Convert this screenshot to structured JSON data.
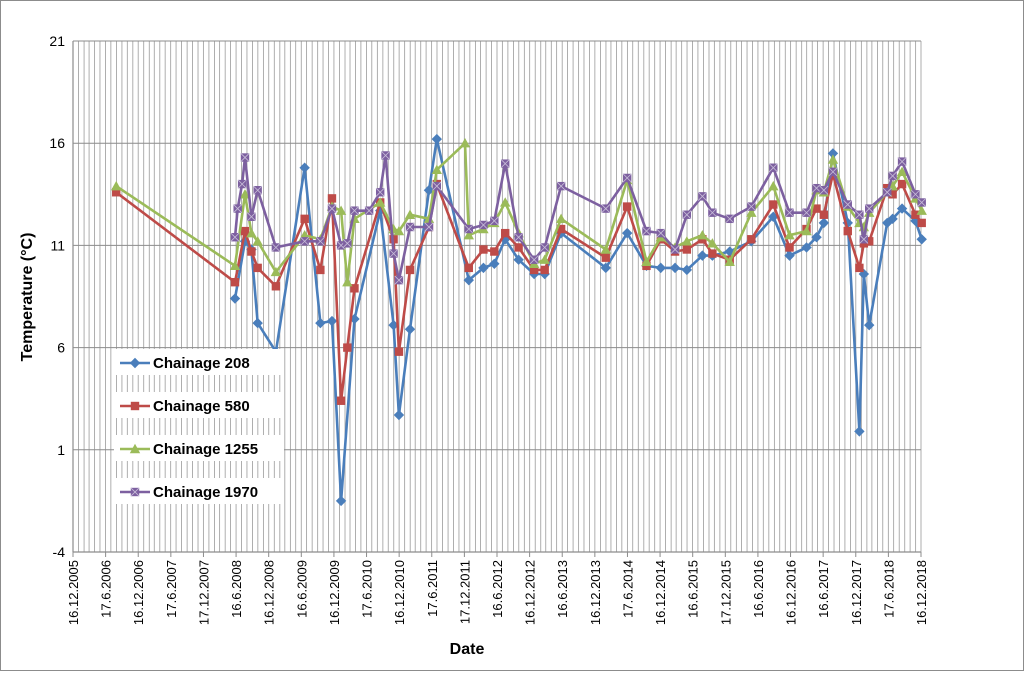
{
  "chart_data": {
    "type": "line",
    "title": "",
    "xlabel": "Date",
    "ylabel": "Temperature (°C)",
    "x_axis_kind": "date",
    "xlim": [
      "2005-12-16",
      "2018-12-16"
    ],
    "ylim": [
      -4,
      21
    ],
    "y_ticks": [
      "21",
      "16",
      "11",
      "6",
      "1",
      "-4"
    ],
    "x_ticks": [
      "16.12.2005",
      "17.6.2006",
      "16.12.2006",
      "17.6.2007",
      "17.12.2007",
      "16.6.2008",
      "16.12.2008",
      "16.6.2009",
      "16.12.2009",
      "17.6.2010",
      "16.12.2010",
      "17.6.2011",
      "17.12.2011",
      "16.6.2012",
      "16.12.2012",
      "16.6.2013",
      "16.12.2013",
      "17.6.2014",
      "16.12.2014",
      "16.6.2015",
      "17.12.2015",
      "16.6.2016",
      "16.12.2016",
      "16.6.2017",
      "16.12.2017",
      "17.6.2018",
      "16.12.2018"
    ],
    "grid": true,
    "legend_position": "left-bottom inside plot",
    "series": [
      {
        "name": "Chainage 208",
        "color": "#4a7ebb",
        "marker": "diamond",
        "points": [
          [
            "2008-06-10",
            8.4
          ],
          [
            "2008-08-05",
            11.2
          ],
          [
            "2008-09-10",
            10.8
          ],
          [
            "2008-10-15",
            7.2
          ],
          [
            "2009-01-25",
            5.8
          ],
          [
            "2009-07-05",
            14.8
          ],
          [
            "2009-10-01",
            7.2
          ],
          [
            "2009-12-05",
            7.3
          ],
          [
            "2010-01-25",
            -1.5
          ],
          [
            "2010-04-10",
            7.4
          ],
          [
            "2010-09-01",
            12.7
          ],
          [
            "2010-11-15",
            7.1
          ],
          [
            "2010-12-15",
            2.7
          ],
          [
            "2011-02-15",
            6.9
          ],
          [
            "2011-06-01",
            13.7
          ],
          [
            "2011-07-15",
            16.2
          ],
          [
            "2012-01-10",
            9.3
          ],
          [
            "2012-04-01",
            9.9
          ],
          [
            "2012-06-01",
            10.1
          ],
          [
            "2012-08-01",
            11.3
          ],
          [
            "2012-10-15",
            10.3
          ],
          [
            "2013-01-10",
            9.6
          ],
          [
            "2013-03-10",
            9.6
          ],
          [
            "2013-06-10",
            11.6
          ],
          [
            "2014-02-15",
            9.9
          ],
          [
            "2014-06-15",
            11.6
          ],
          [
            "2014-10-01",
            10.0
          ],
          [
            "2014-12-20",
            9.9
          ],
          [
            "2015-03-10",
            9.9
          ],
          [
            "2015-05-15",
            9.8
          ],
          [
            "2015-08-10",
            10.5
          ],
          [
            "2015-10-05",
            10.5
          ],
          [
            "2016-01-10",
            10.7
          ],
          [
            "2016-05-10",
            11.2
          ],
          [
            "2016-09-10",
            12.4
          ],
          [
            "2016-12-10",
            10.5
          ],
          [
            "2017-03-15",
            10.9
          ],
          [
            "2017-05-10",
            11.4
          ],
          [
            "2017-06-20",
            12.1
          ],
          [
            "2017-08-10",
            15.5
          ],
          [
            "2017-11-01",
            12.1
          ],
          [
            "2018-01-05",
            1.9
          ],
          [
            "2018-01-30",
            9.6
          ],
          [
            "2018-03-01",
            7.1
          ],
          [
            "2018-06-10",
            12.1
          ],
          [
            "2018-07-10",
            12.3
          ],
          [
            "2018-09-01",
            12.8
          ],
          [
            "2018-11-15",
            12.2
          ],
          [
            "2018-12-20",
            11.3
          ]
        ]
      },
      {
        "name": "Chainage 580",
        "color": "#be4b48",
        "marker": "square",
        "points": [
          [
            "2006-08-15",
            13.6
          ],
          [
            "2008-06-10",
            9.2
          ],
          [
            "2008-08-05",
            11.7
          ],
          [
            "2008-09-10",
            10.7
          ],
          [
            "2008-10-15",
            9.9
          ],
          [
            "2009-01-25",
            9.0
          ],
          [
            "2009-07-05",
            12.3
          ],
          [
            "2009-10-01",
            9.8
          ],
          [
            "2009-12-05",
            13.3
          ],
          [
            "2010-01-25",
            3.4
          ],
          [
            "2010-03-01",
            6.0
          ],
          [
            "2010-04-10",
            8.9
          ],
          [
            "2010-09-01",
            13.1
          ],
          [
            "2010-11-15",
            11.3
          ],
          [
            "2010-12-15",
            5.8
          ],
          [
            "2011-02-15",
            9.8
          ],
          [
            "2011-06-01",
            11.9
          ],
          [
            "2011-07-15",
            14.0
          ],
          [
            "2012-01-10",
            9.9
          ],
          [
            "2012-04-01",
            10.8
          ],
          [
            "2012-06-01",
            10.7
          ],
          [
            "2012-08-01",
            11.6
          ],
          [
            "2012-10-15",
            10.9
          ],
          [
            "2013-01-10",
            9.8
          ],
          [
            "2013-03-10",
            9.8
          ],
          [
            "2013-06-10",
            11.8
          ],
          [
            "2014-02-15",
            10.4
          ],
          [
            "2014-06-15",
            12.9
          ],
          [
            "2014-10-01",
            10.0
          ],
          [
            "2014-12-20",
            11.3
          ],
          [
            "2015-03-10",
            10.7
          ],
          [
            "2015-05-15",
            10.8
          ],
          [
            "2015-08-10",
            11.3
          ],
          [
            "2015-10-05",
            10.6
          ],
          [
            "2016-01-10",
            10.3
          ],
          [
            "2016-05-10",
            11.3
          ],
          [
            "2016-09-10",
            13.0
          ],
          [
            "2016-12-10",
            10.9
          ],
          [
            "2017-03-15",
            11.8
          ],
          [
            "2017-05-10",
            12.8
          ],
          [
            "2017-06-20",
            12.5
          ],
          [
            "2017-08-10",
            14.5
          ],
          [
            "2017-11-01",
            11.7
          ],
          [
            "2018-01-05",
            9.9
          ],
          [
            "2018-01-30",
            11.1
          ],
          [
            "2018-03-01",
            11.2
          ],
          [
            "2018-06-10",
            13.8
          ],
          [
            "2018-07-10",
            13.5
          ],
          [
            "2018-09-01",
            14.0
          ],
          [
            "2018-11-15",
            12.5
          ],
          [
            "2018-12-20",
            12.1
          ]
        ]
      },
      {
        "name": "Chainage 1255",
        "color": "#9bbb59",
        "marker": "triangle",
        "points": [
          [
            "2006-08-15",
            13.9
          ],
          [
            "2008-06-10",
            10.0
          ],
          [
            "2008-08-05",
            13.5
          ],
          [
            "2008-09-10",
            11.6
          ],
          [
            "2008-10-15",
            11.2
          ],
          [
            "2009-01-25",
            9.7
          ],
          [
            "2009-07-05",
            11.5
          ],
          [
            "2009-10-01",
            11.3
          ],
          [
            "2009-12-05",
            12.9
          ],
          [
            "2010-01-25",
            12.7
          ],
          [
            "2010-03-01",
            9.2
          ],
          [
            "2010-04-10",
            12.3
          ],
          [
            "2010-09-01",
            13.1
          ],
          [
            "2010-11-15",
            11.8
          ],
          [
            "2010-12-15",
            11.7
          ],
          [
            "2011-02-15",
            12.5
          ],
          [
            "2011-06-01",
            12.3
          ],
          [
            "2011-07-15",
            14.7
          ],
          [
            "2011-12-20",
            16.0
          ],
          [
            "2012-01-10",
            11.5
          ],
          [
            "2012-04-01",
            11.8
          ],
          [
            "2012-06-01",
            12.1
          ],
          [
            "2012-08-01",
            13.1
          ],
          [
            "2012-10-15",
            11.6
          ],
          [
            "2013-01-10",
            10.1
          ],
          [
            "2013-03-10",
            10.3
          ],
          [
            "2013-06-10",
            12.3
          ],
          [
            "2014-02-15",
            10.8
          ],
          [
            "2014-06-15",
            14.2
          ],
          [
            "2014-10-01",
            10.2
          ],
          [
            "2014-12-20",
            11.4
          ],
          [
            "2015-03-10",
            10.9
          ],
          [
            "2015-05-15",
            11.2
          ],
          [
            "2015-08-10",
            11.5
          ],
          [
            "2015-10-05",
            11.1
          ],
          [
            "2016-01-10",
            10.2
          ],
          [
            "2016-05-10",
            12.6
          ],
          [
            "2016-09-10",
            13.9
          ],
          [
            "2016-12-10",
            11.5
          ],
          [
            "2017-03-15",
            11.7
          ],
          [
            "2017-05-10",
            13.7
          ],
          [
            "2017-06-20",
            13.6
          ],
          [
            "2017-08-10",
            15.2
          ],
          [
            "2017-11-01",
            12.9
          ],
          [
            "2018-01-05",
            12.1
          ],
          [
            "2018-01-30",
            11.9
          ],
          [
            "2018-03-01",
            12.6
          ],
          [
            "2018-06-10",
            13.6
          ],
          [
            "2018-07-10",
            13.9
          ],
          [
            "2018-09-01",
            14.6
          ],
          [
            "2018-11-15",
            13.3
          ],
          [
            "2018-12-20",
            12.7
          ]
        ]
      },
      {
        "name": "Chainage 1970",
        "color": "#7d60a0",
        "marker": "square-x",
        "points": [
          [
            "2008-06-10",
            11.4
          ],
          [
            "2008-06-25",
            12.8
          ],
          [
            "2008-07-20",
            14.0
          ],
          [
            "2008-08-05",
            15.3
          ],
          [
            "2008-09-10",
            12.4
          ],
          [
            "2008-10-15",
            13.7
          ],
          [
            "2009-01-25",
            10.9
          ],
          [
            "2009-07-05",
            11.2
          ],
          [
            "2009-10-01",
            11.2
          ],
          [
            "2009-12-05",
            12.8
          ],
          [
            "2010-01-25",
            11.0
          ],
          [
            "2010-03-01",
            11.1
          ],
          [
            "2010-04-10",
            12.7
          ],
          [
            "2010-07-01",
            12.7
          ],
          [
            "2010-09-01",
            13.6
          ],
          [
            "2010-10-01",
            15.4
          ],
          [
            "2010-11-15",
            10.6
          ],
          [
            "2010-12-15",
            9.3
          ],
          [
            "2011-02-15",
            11.9
          ],
          [
            "2011-06-01",
            11.9
          ],
          [
            "2011-07-15",
            13.9
          ],
          [
            "2012-01-10",
            11.8
          ],
          [
            "2012-04-01",
            12.0
          ],
          [
            "2012-06-01",
            12.2
          ],
          [
            "2012-08-01",
            15.0
          ],
          [
            "2012-10-15",
            11.4
          ],
          [
            "2013-01-10",
            10.3
          ],
          [
            "2013-03-10",
            10.9
          ],
          [
            "2013-06-10",
            13.9
          ],
          [
            "2014-02-15",
            12.8
          ],
          [
            "2014-06-15",
            14.3
          ],
          [
            "2014-10-01",
            11.7
          ],
          [
            "2014-12-20",
            11.6
          ],
          [
            "2015-03-10",
            10.8
          ],
          [
            "2015-05-15",
            12.5
          ],
          [
            "2015-08-10",
            13.4
          ],
          [
            "2015-10-05",
            12.6
          ],
          [
            "2016-01-10",
            12.3
          ],
          [
            "2016-05-10",
            12.9
          ],
          [
            "2016-09-10",
            14.8
          ],
          [
            "2016-12-10",
            12.6
          ],
          [
            "2017-03-15",
            12.6
          ],
          [
            "2017-05-10",
            13.8
          ],
          [
            "2017-06-20",
            13.7
          ],
          [
            "2017-08-10",
            14.6
          ],
          [
            "2017-11-01",
            13.0
          ],
          [
            "2018-01-05",
            12.5
          ],
          [
            "2018-01-30",
            11.3
          ],
          [
            "2018-03-01",
            12.8
          ],
          [
            "2018-06-10",
            13.6
          ],
          [
            "2018-07-10",
            14.4
          ],
          [
            "2018-09-01",
            15.1
          ],
          [
            "2018-11-15",
            13.5
          ],
          [
            "2018-12-20",
            13.1
          ]
        ]
      }
    ]
  }
}
